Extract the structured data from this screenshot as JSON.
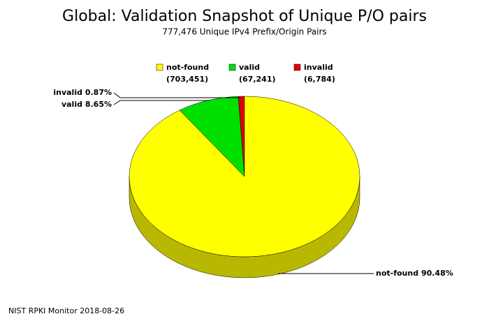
{
  "chart_data": {
    "type": "pie3d",
    "title": "Global: Validation Snapshot of Unique P/O pairs",
    "subtitle": "777,476 Unique IPv4 Prefix/Origin Pairs",
    "footer": "NIST RPKI Monitor 2018-08-26",
    "categories": [
      "not-found",
      "valid",
      "invalid"
    ],
    "values": [
      90.48,
      8.65,
      0.87
    ],
    "value_labels": [
      "90.48%",
      "8.65%",
      "0.87%"
    ],
    "counts": [
      703451,
      67241,
      6784
    ],
    "count_labels": [
      "(703,451)",
      "(67,241)",
      "(6,784)"
    ],
    "colors": [
      "#ffff00",
      "#00e000",
      "#e00000"
    ]
  }
}
